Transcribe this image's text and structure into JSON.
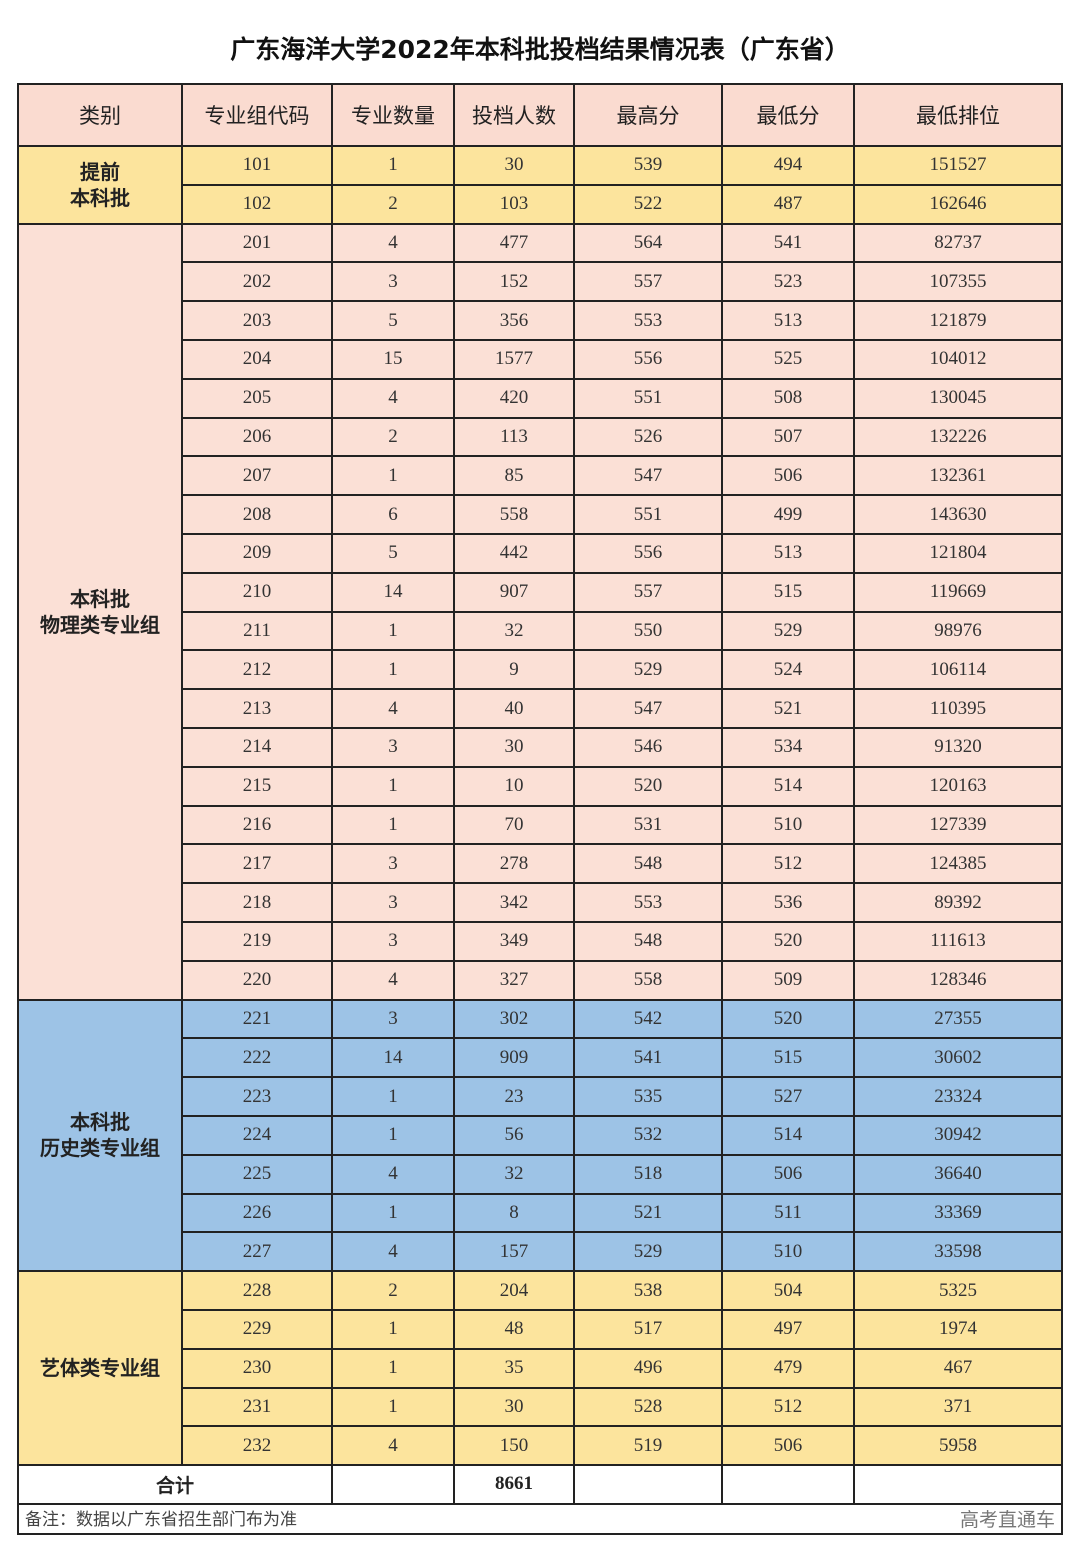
{
  "title": "广东海洋大学2022年本科批投档结果情况表（广东省）",
  "headers": [
    "类别",
    "专业组代码",
    "专业数量",
    "投档人数",
    "最高分",
    "最低分",
    "最低排位"
  ],
  "colors": {
    "header": "#fadbd0",
    "yellow": "#fce49d",
    "pink": "#fbe0d6",
    "blue": "#9dc3e6"
  },
  "groups": [
    {
      "category": "提前\n本科批",
      "color": "yellow",
      "rows": [
        [
          "101",
          "1",
          "30",
          "539",
          "494",
          "151527"
        ],
        [
          "102",
          "2",
          "103",
          "522",
          "487",
          "162646"
        ]
      ]
    },
    {
      "category": "本科批\n物理类专业组",
      "color": "pink",
      "rows": [
        [
          "201",
          "4",
          "477",
          "564",
          "541",
          "82737"
        ],
        [
          "202",
          "3",
          "152",
          "557",
          "523",
          "107355"
        ],
        [
          "203",
          "5",
          "356",
          "553",
          "513",
          "121879"
        ],
        [
          "204",
          "15",
          "1577",
          "556",
          "525",
          "104012"
        ],
        [
          "205",
          "4",
          "420",
          "551",
          "508",
          "130045"
        ],
        [
          "206",
          "2",
          "113",
          "526",
          "507",
          "132226"
        ],
        [
          "207",
          "1",
          "85",
          "547",
          "506",
          "132361"
        ],
        [
          "208",
          "6",
          "558",
          "551",
          "499",
          "143630"
        ],
        [
          "209",
          "5",
          "442",
          "556",
          "513",
          "121804"
        ],
        [
          "210",
          "14",
          "907",
          "557",
          "515",
          "119669"
        ],
        [
          "211",
          "1",
          "32",
          "550",
          "529",
          "98976"
        ],
        [
          "212",
          "1",
          "9",
          "529",
          "524",
          "106114"
        ],
        [
          "213",
          "4",
          "40",
          "547",
          "521",
          "110395"
        ],
        [
          "214",
          "3",
          "30",
          "546",
          "534",
          "91320"
        ],
        [
          "215",
          "1",
          "10",
          "520",
          "514",
          "120163"
        ],
        [
          "216",
          "1",
          "70",
          "531",
          "510",
          "127339"
        ],
        [
          "217",
          "3",
          "278",
          "548",
          "512",
          "124385"
        ],
        [
          "218",
          "3",
          "342",
          "553",
          "536",
          "89392"
        ],
        [
          "219",
          "3",
          "349",
          "548",
          "520",
          "111613"
        ],
        [
          "220",
          "4",
          "327",
          "558",
          "509",
          "128346"
        ]
      ]
    },
    {
      "category": "本科批\n历史类专业组",
      "color": "blue",
      "rows": [
        [
          "221",
          "3",
          "302",
          "542",
          "520",
          "27355"
        ],
        [
          "222",
          "14",
          "909",
          "541",
          "515",
          "30602"
        ],
        [
          "223",
          "1",
          "23",
          "535",
          "527",
          "23324"
        ],
        [
          "224",
          "1",
          "56",
          "532",
          "514",
          "30942"
        ],
        [
          "225",
          "4",
          "32",
          "518",
          "506",
          "36640"
        ],
        [
          "226",
          "1",
          "8",
          "521",
          "511",
          "33369"
        ],
        [
          "227",
          "4",
          "157",
          "529",
          "510",
          "33598"
        ]
      ]
    },
    {
      "category": "艺体类专业组",
      "color": "yellow",
      "rows": [
        [
          "228",
          "2",
          "204",
          "538",
          "504",
          "5325"
        ],
        [
          "229",
          "1",
          "48",
          "517",
          "497",
          "1974"
        ],
        [
          "230",
          "1",
          "35",
          "496",
          "479",
          "467"
        ],
        [
          "231",
          "1",
          "30",
          "528",
          "512",
          "371"
        ],
        [
          "232",
          "4",
          "150",
          "519",
          "506",
          "5958"
        ]
      ]
    }
  ],
  "total": {
    "label": "合计",
    "count": "8661"
  },
  "note": "备注：数据以广东省招生部门布为准",
  "watermark": "高考直通车"
}
